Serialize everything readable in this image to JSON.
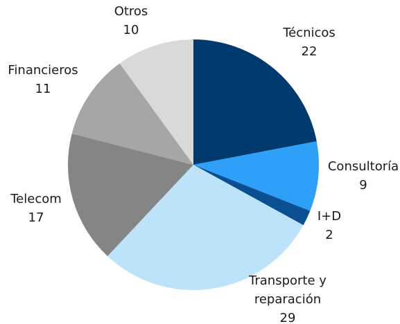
{
  "chart_data": {
    "type": "pie",
    "categories": [
      "Técnicos",
      "Consultoría",
      "I+D",
      "Transporte y reparación",
      "Telecom",
      "Financieros",
      "Otros"
    ],
    "values": [
      22,
      9,
      2,
      29,
      17,
      11,
      10
    ],
    "colors": [
      "#003a6e",
      "#2fa0f8",
      "#0b4f93",
      "#bde3fb",
      "#858585",
      "#a6a6a6",
      "#d9d9d9"
    ]
  }
}
